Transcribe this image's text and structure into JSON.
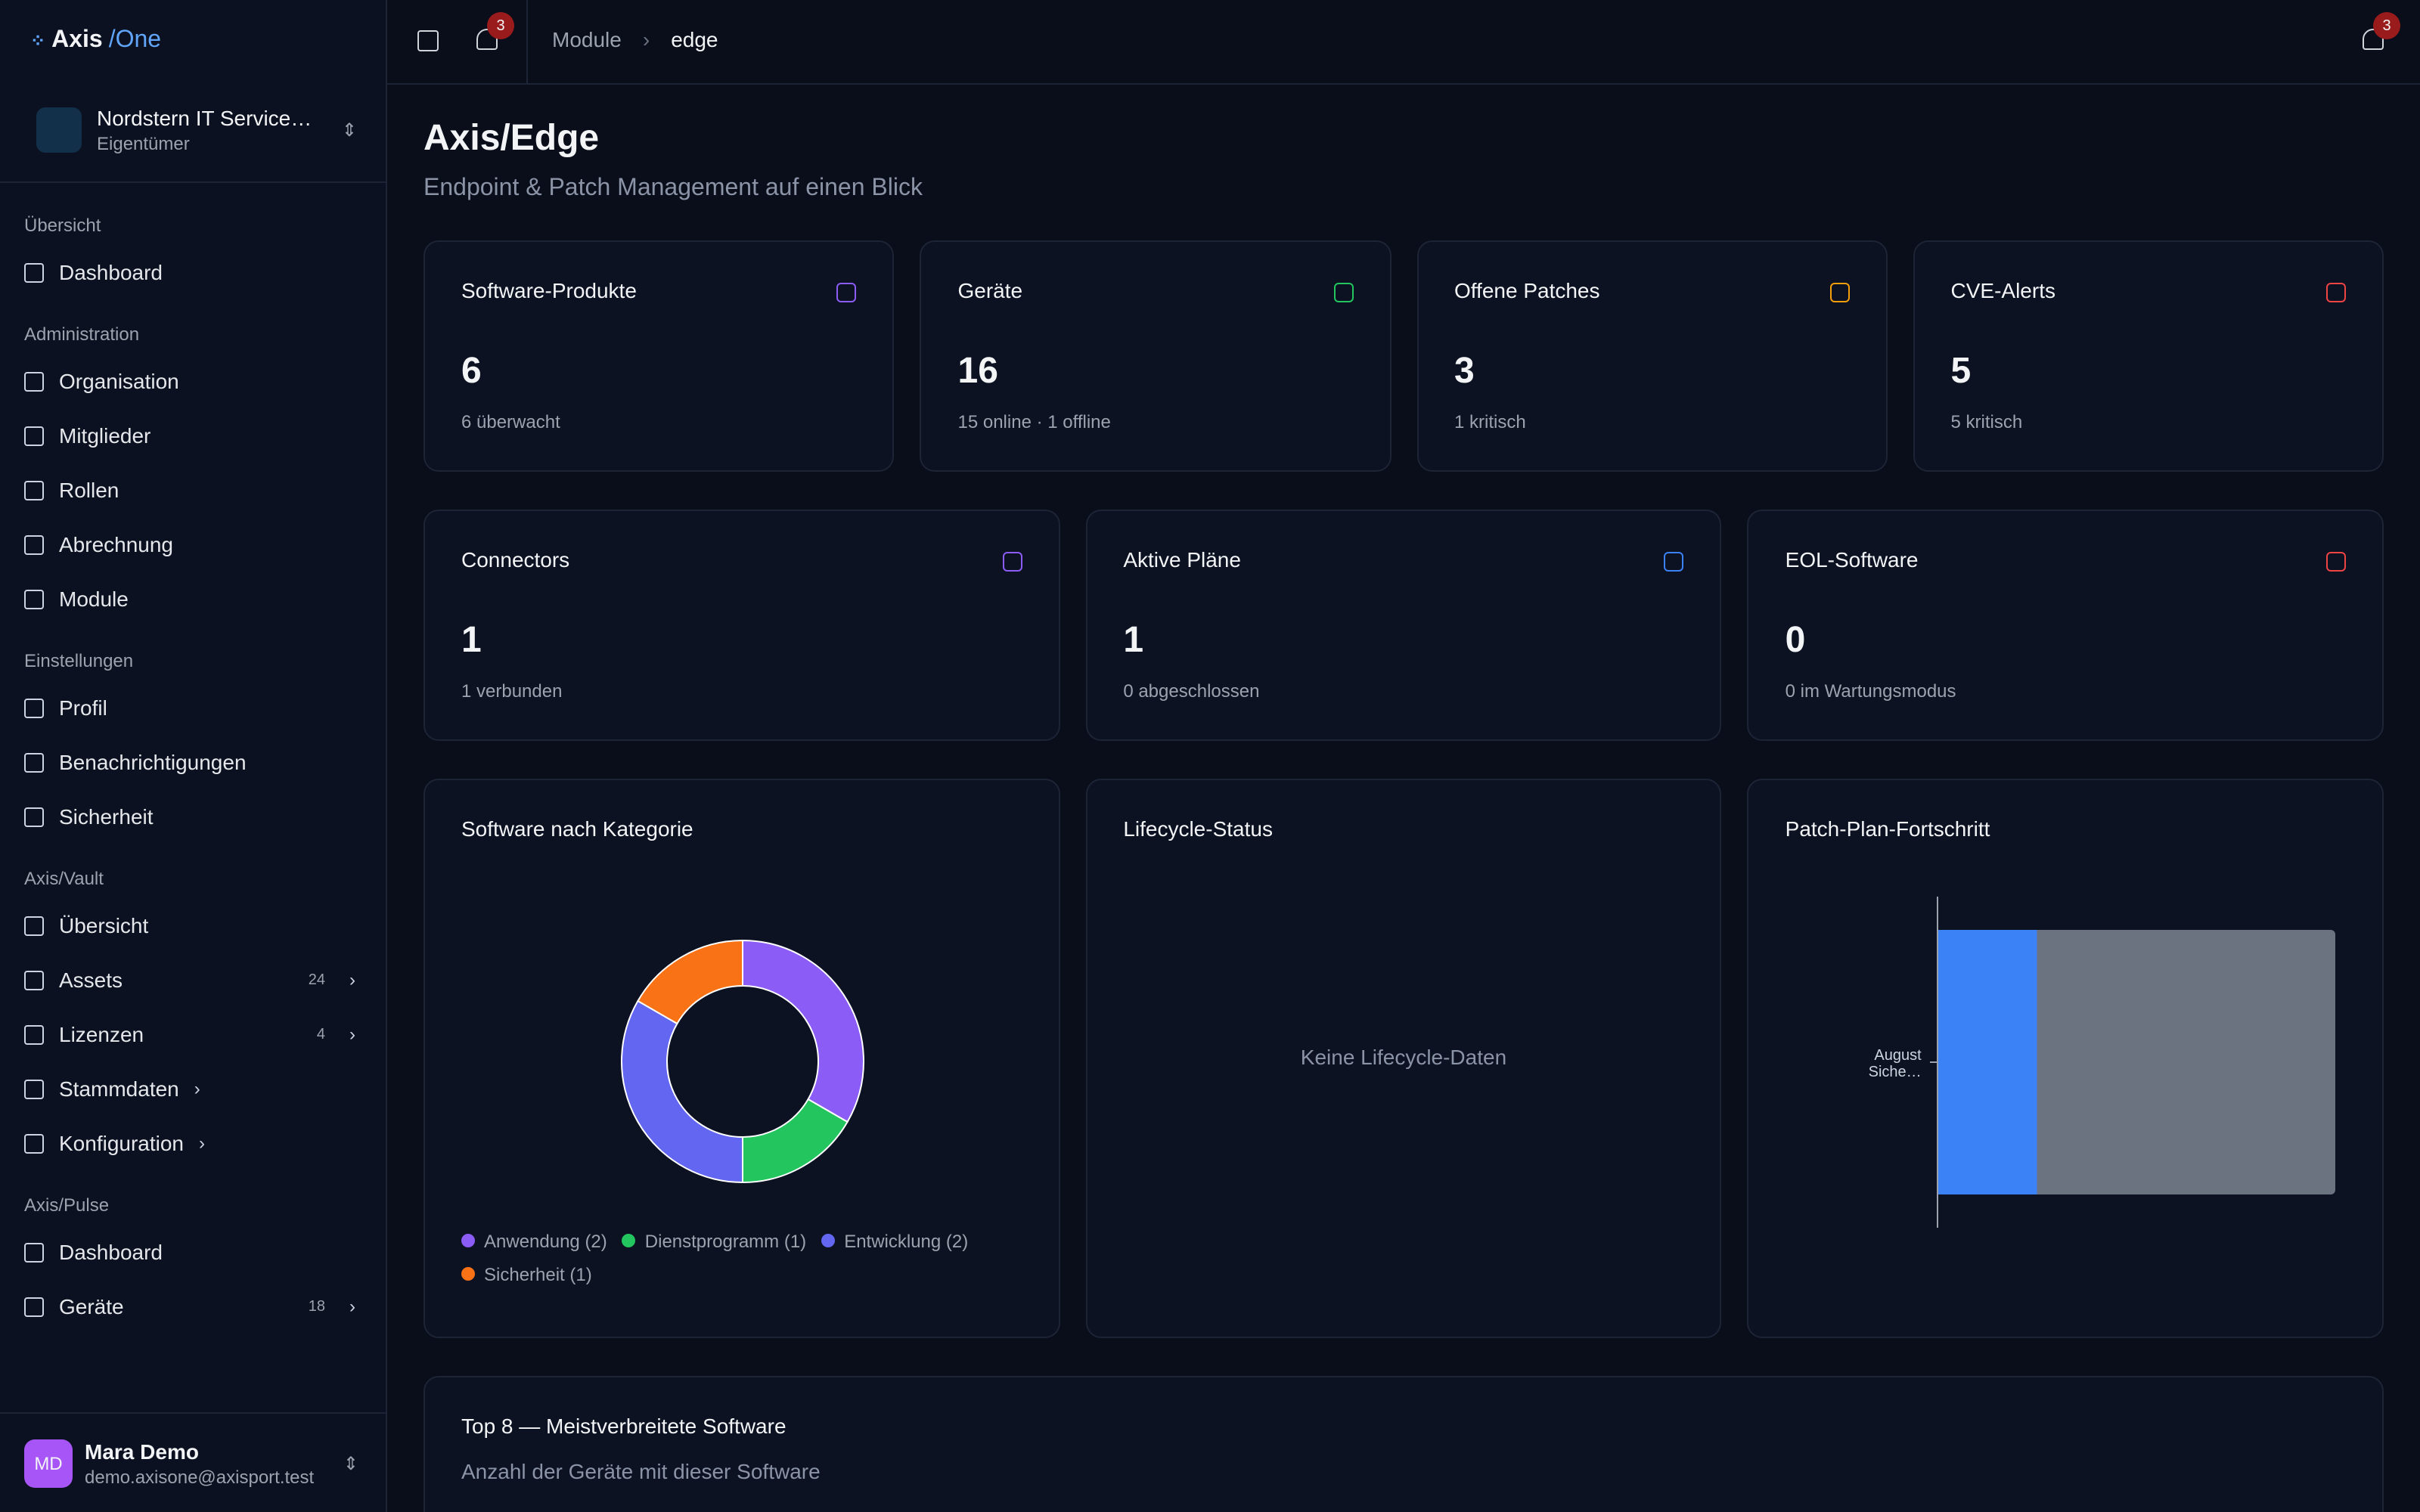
{
  "sidebar": {
    "logo": {
      "name": "Axis",
      "suffix": "/One"
    },
    "org": {
      "name": "Nordstern IT Service…",
      "role": "Eigentümer"
    },
    "sections": [
      {
        "title": "Übersicht",
        "items": [
          {
            "label": "Dashboard"
          }
        ]
      },
      {
        "title": "Administration",
        "items": [
          {
            "label": "Organisation"
          },
          {
            "label": "Mitglieder"
          },
          {
            "label": "Rollen"
          },
          {
            "label": "Abrechnung"
          },
          {
            "label": "Module"
          }
        ]
      },
      {
        "title": "Einstellungen",
        "items": [
          {
            "label": "Profil"
          },
          {
            "label": "Benachrichtigungen"
          },
          {
            "label": "Sicherheit"
          }
        ]
      },
      {
        "title": "Axis/Vault",
        "items": [
          {
            "label": "Übersicht"
          },
          {
            "label": "Assets",
            "badge": "24",
            "expandable": true
          },
          {
            "label": "Lizenzen",
            "badge": "4",
            "expandable": true
          },
          {
            "label": "Stammdaten",
            "expandable": true
          },
          {
            "label": "Konfiguration",
            "expandable": true
          }
        ]
      },
      {
        "title": "Axis/Pulse",
        "items": [
          {
            "label": "Dashboard"
          },
          {
            "label": "Geräte",
            "badge": "18",
            "expandable": true
          }
        ]
      }
    ],
    "user": {
      "initials": "MD",
      "name": "Mara Demo",
      "email": "demo.axisone@axisport.test"
    }
  },
  "header": {
    "notifications": "3",
    "breadcrumb": [
      "Module",
      "edge"
    ],
    "notifications_right": "3"
  },
  "page": {
    "title": "Axis/Edge",
    "subtitle": "Endpoint & Patch Management auf einen Blick"
  },
  "stats_row1": [
    {
      "title": "Software-Produkte",
      "value": "6",
      "note": "6 überwacht",
      "color": "#8b5cf6"
    },
    {
      "title": "Geräte",
      "value": "16",
      "note": "15 online · 1 offline",
      "color": "#22c55e"
    },
    {
      "title": "Offene Patches",
      "value": "3",
      "note": "1 kritisch",
      "color": "#f59e0b"
    },
    {
      "title": "CVE-Alerts",
      "value": "5",
      "note": "5 kritisch",
      "color": "#ef4444"
    }
  ],
  "stats_row2": [
    {
      "title": "Connectors",
      "value": "1",
      "note": "1 verbunden",
      "color": "#8b5cf6"
    },
    {
      "title": "Aktive Pläne",
      "value": "1",
      "note": "0 abgeschlossen",
      "color": "#3b82f6"
    },
    {
      "title": "EOL-Software",
      "value": "0",
      "note": "0 im Wartungsmodus",
      "color": "#ef4444"
    }
  ],
  "chart_data": [
    {
      "type": "pie",
      "donut": true,
      "title": "Software nach Kategorie",
      "categories": [
        "Anwendung (2)",
        "Dienstprogramm (1)",
        "Entwicklung (2)",
        "Sicherheit (1)"
      ],
      "values": [
        2,
        1,
        2,
        1
      ],
      "colors": [
        "#8b5cf6",
        "#22c55e",
        "#6366f1",
        "#f97316"
      ]
    },
    {
      "type": "bar",
      "orientation": "horizontal",
      "title": "Patch-Plan-Fortschritt",
      "categories": [
        "August Siche…"
      ],
      "values": [
        25
      ],
      "xlim": [
        0,
        100
      ],
      "color": "#3b82f6",
      "track_color": "#6b7280"
    }
  ],
  "lifecycle": {
    "title": "Lifecycle-Status",
    "empty": "Keine Lifecycle-Daten"
  },
  "top8": {
    "title": "Top 8 — Meistverbreitete Software",
    "subtitle": "Anzahl der Geräte mit dieser Software"
  }
}
